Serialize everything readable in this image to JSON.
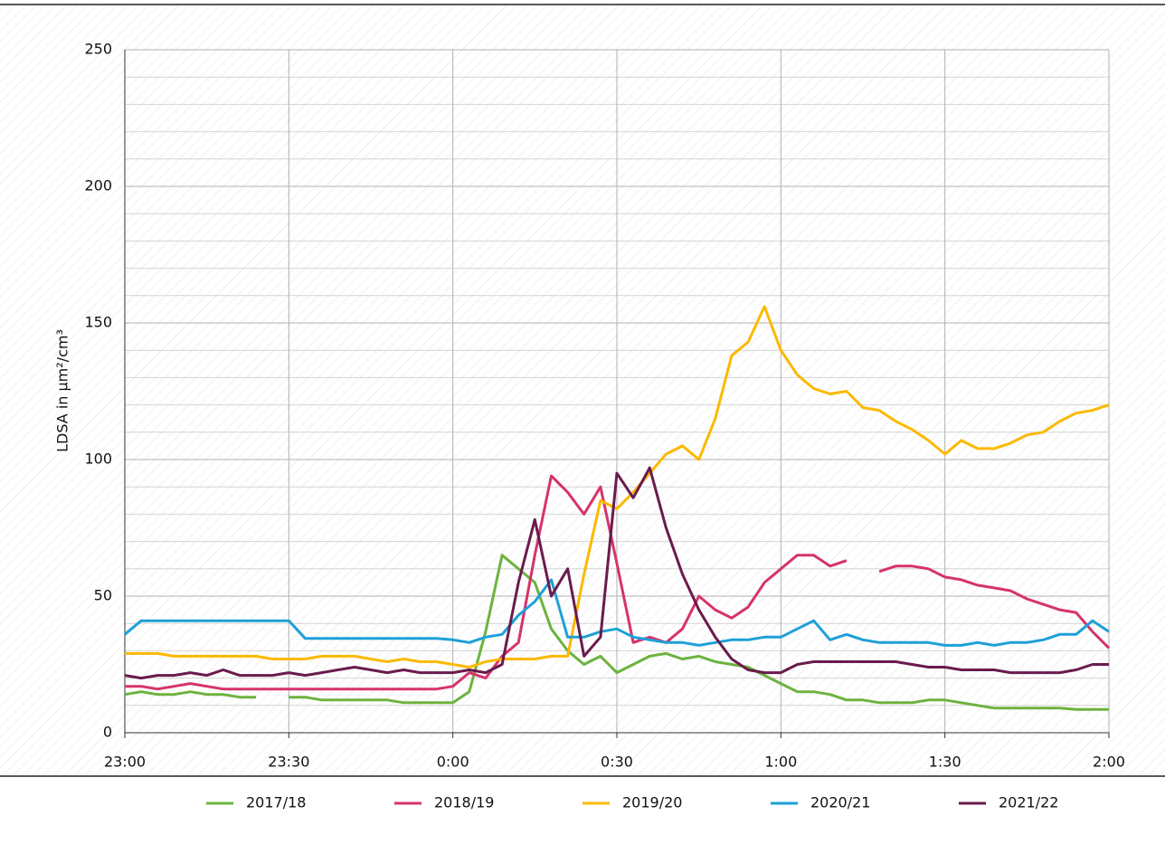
{
  "chart_data": {
    "type": "line",
    "y_label": "LDSA in µm²/cm³",
    "x": [
      0,
      3,
      6,
      9,
      12,
      15,
      18,
      21,
      24,
      27,
      30,
      33,
      36,
      39,
      42,
      45,
      48,
      51,
      54,
      57,
      60,
      63,
      66,
      69,
      72,
      75,
      78,
      81,
      84,
      87,
      90,
      93,
      96,
      99,
      102,
      105,
      108,
      111,
      114,
      117,
      120,
      123,
      126,
      129,
      132,
      135,
      138,
      141,
      144,
      147,
      150,
      153,
      156,
      159,
      162,
      165,
      168,
      171,
      174,
      177,
      180
    ],
    "xlim": [
      0,
      180
    ],
    "xticks": [
      {
        "value": 0,
        "label": "23:00"
      },
      {
        "value": 30,
        "label": "23:30"
      },
      {
        "value": 60,
        "label": "0:00"
      },
      {
        "value": 90,
        "label": "0:30"
      },
      {
        "value": 120,
        "label": "1:00"
      },
      {
        "value": 150,
        "label": "1:30"
      },
      {
        "value": 180,
        "label": "2:00"
      }
    ],
    "ylim": [
      0,
      250
    ],
    "yticks": [
      0,
      50,
      100,
      150,
      200,
      250
    ],
    "minor_yticks": [
      10,
      20,
      30,
      40,
      60,
      70,
      80,
      90,
      110,
      120,
      130,
      140,
      160,
      170,
      180,
      190,
      210,
      220,
      230,
      240
    ],
    "grid": true,
    "legend": "bottom",
    "series": [
      {
        "name": "2017/18",
        "color": "#6db33f",
        "values": [
          14,
          15,
          14,
          14,
          15,
          14,
          14,
          13,
          13,
          null,
          13,
          13,
          12,
          12,
          12,
          12,
          12,
          11,
          11,
          11,
          11,
          15,
          37,
          65,
          60,
          55,
          38,
          30,
          25,
          28,
          22,
          25,
          28,
          29,
          27,
          28,
          26,
          25,
          24,
          21,
          18,
          15,
          15,
          14,
          12,
          12,
          11,
          11,
          11,
          12,
          12,
          11,
          10,
          9,
          9,
          9,
          9,
          9,
          8.5,
          8.5,
          8.5
        ]
      },
      {
        "name": "2018/19",
        "color": "#d6336c",
        "values": [
          17,
          17,
          16,
          17,
          18,
          17,
          16,
          16,
          16,
          16,
          16,
          16,
          16,
          16,
          16,
          16,
          16,
          16,
          16,
          16,
          17,
          22,
          20,
          28,
          33,
          65,
          94,
          88,
          80,
          90,
          62,
          33,
          35,
          33,
          38,
          50,
          45,
          42,
          46,
          55,
          60,
          65,
          65,
          61,
          63,
          null,
          59,
          61,
          61,
          60,
          57,
          56,
          54,
          53,
          52,
          49,
          47,
          45,
          44,
          37,
          31
        ]
      },
      {
        "name": "2019/20",
        "color": "#fbb900",
        "values": [
          29,
          29,
          29,
          28,
          28,
          28,
          28,
          28,
          28,
          27,
          27,
          27,
          28,
          28,
          28,
          27,
          26,
          27,
          26,
          26,
          25,
          24,
          26,
          27,
          27,
          27,
          28,
          28,
          58,
          85,
          82,
          88,
          95,
          102,
          105,
          100,
          115,
          138,
          143,
          156,
          140,
          131,
          126,
          124,
          125,
          119,
          118,
          114,
          111,
          107,
          102,
          107,
          104,
          104,
          106,
          109,
          110,
          114,
          117,
          118,
          120
        ]
      },
      {
        "name": "2020/21",
        "color": "#1ea0d8",
        "values": [
          36,
          41,
          41,
          41,
          41,
          41,
          41,
          41,
          41,
          41,
          41,
          34.5,
          34.5,
          34.5,
          34.5,
          34.5,
          34.5,
          34.5,
          34.5,
          34.5,
          34,
          33,
          35,
          36,
          43,
          48,
          56,
          35,
          35,
          37,
          38,
          35,
          34,
          33,
          33,
          32,
          33,
          34,
          34,
          35,
          35,
          38,
          41,
          34,
          36,
          34,
          33,
          33,
          33,
          33,
          32,
          32,
          33,
          32,
          33,
          33,
          34,
          36,
          36,
          41,
          37
        ]
      },
      {
        "name": "2021/22",
        "color": "#6a1b4d",
        "values": [
          21,
          20,
          21,
          21,
          22,
          21,
          23,
          21,
          21,
          21,
          22,
          21,
          22,
          23,
          24,
          23,
          22,
          23,
          22,
          22,
          22,
          23,
          22,
          25,
          55,
          78,
          50,
          60,
          28,
          35,
          95,
          86,
          97,
          75,
          58,
          45,
          35,
          27,
          23,
          22,
          22,
          25,
          26,
          26,
          26,
          26,
          26,
          26,
          25,
          24,
          24,
          23,
          23,
          23,
          22,
          22,
          22,
          22,
          23,
          25,
          25
        ]
      }
    ]
  }
}
